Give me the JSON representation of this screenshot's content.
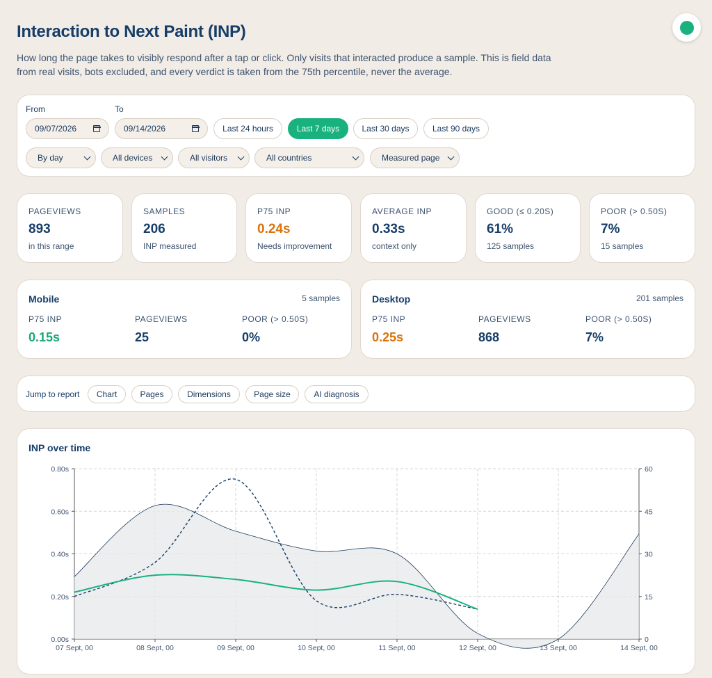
{
  "header": {
    "title": "Interaction to Next Paint (INP)",
    "description": "How long the page takes to visibly respond after a tap or click. Only visits that interacted produce a sample. This is field data from real visits, bots excluded, and every verdict is taken from the 75th percentile, never the average."
  },
  "status": {
    "color": "#19b17e"
  },
  "filters": {
    "from_label": "From",
    "to_label": "To",
    "from_value": "09/07/2026",
    "to_value": "09/14/2026",
    "ranges": [
      "Last 24 hours",
      "Last 7 days",
      "Last 30 days",
      "Last 90 days"
    ],
    "active_range": "Last 7 days",
    "selects": [
      "By day",
      "All devices",
      "All visitors",
      "All countries",
      "Measured page"
    ]
  },
  "kpis": [
    {
      "label": "PAGEVIEWS",
      "value": "893",
      "sub": "in this range"
    },
    {
      "label": "SAMPLES",
      "value": "206",
      "sub": "INP measured"
    },
    {
      "label": "P75 INP",
      "value": "0.24s",
      "sub": "Needs improvement"
    },
    {
      "label": "AVERAGE INP",
      "value": "0.33s",
      "sub": "context only"
    },
    {
      "label": "GOOD (≤ 0.20S)",
      "value": "61%",
      "sub": "125 samples"
    },
    {
      "label": "POOR (> 0.50S)",
      "value": "7%",
      "sub": "15 samples"
    }
  ],
  "devices": [
    {
      "name": "Mobile",
      "samples": "5 samples",
      "p75_label": "P75 INP",
      "p75": "0.15s",
      "pv_label": "PAGEVIEWS",
      "pageviews": "25",
      "poor_label": "POOR (> 0.50S)",
      "poor": "0%"
    },
    {
      "name": "Desktop",
      "samples": "201 samples",
      "p75_label": "P75 INP",
      "p75": "0.25s",
      "pv_label": "PAGEVIEWS",
      "pageviews": "868",
      "poor_label": "POOR (> 0.50S)",
      "poor": "7%"
    }
  ],
  "jump": {
    "label": "Jump to report",
    "links": [
      "Chart",
      "Pages",
      "Dimensions",
      "Page size",
      "AI diagnosis"
    ]
  },
  "chart": {
    "title": "INP over time"
  },
  "chart_data": {
    "type": "line",
    "title": "INP over time",
    "x": [
      "07 Sept, 00",
      "08 Sept, 00",
      "09 Sept, 00",
      "10 Sept, 00",
      "11 Sept, 00",
      "12 Sept, 00",
      "13 Sept, 00",
      "14 Sept, 00"
    ],
    "y_ticks": [
      "0.00s",
      "0.20s",
      "0.40s",
      "0.60s",
      "0.80s"
    ],
    "y2_ticks": [
      "0",
      "15",
      "30",
      "45",
      "60"
    ],
    "ylim": [
      0,
      0.8
    ],
    "y2lim": [
      0,
      60
    ],
    "grid": true,
    "series": [
      {
        "axis": "right",
        "style": "area",
        "values": [
          22,
          47,
          38,
          31,
          30,
          2,
          0,
          37
        ],
        "color": "#1b3a5c"
      },
      {
        "axis": "left",
        "style": "dashed",
        "values": [
          0.2,
          0.36,
          0.75,
          0.18,
          0.21,
          0.14,
          null,
          null
        ],
        "color": "#173e68"
      },
      {
        "axis": "left",
        "style": "solid",
        "values": [
          0.22,
          0.3,
          0.28,
          0.23,
          0.27,
          0.14,
          null,
          null
        ],
        "color": "#19b17e"
      }
    ]
  }
}
